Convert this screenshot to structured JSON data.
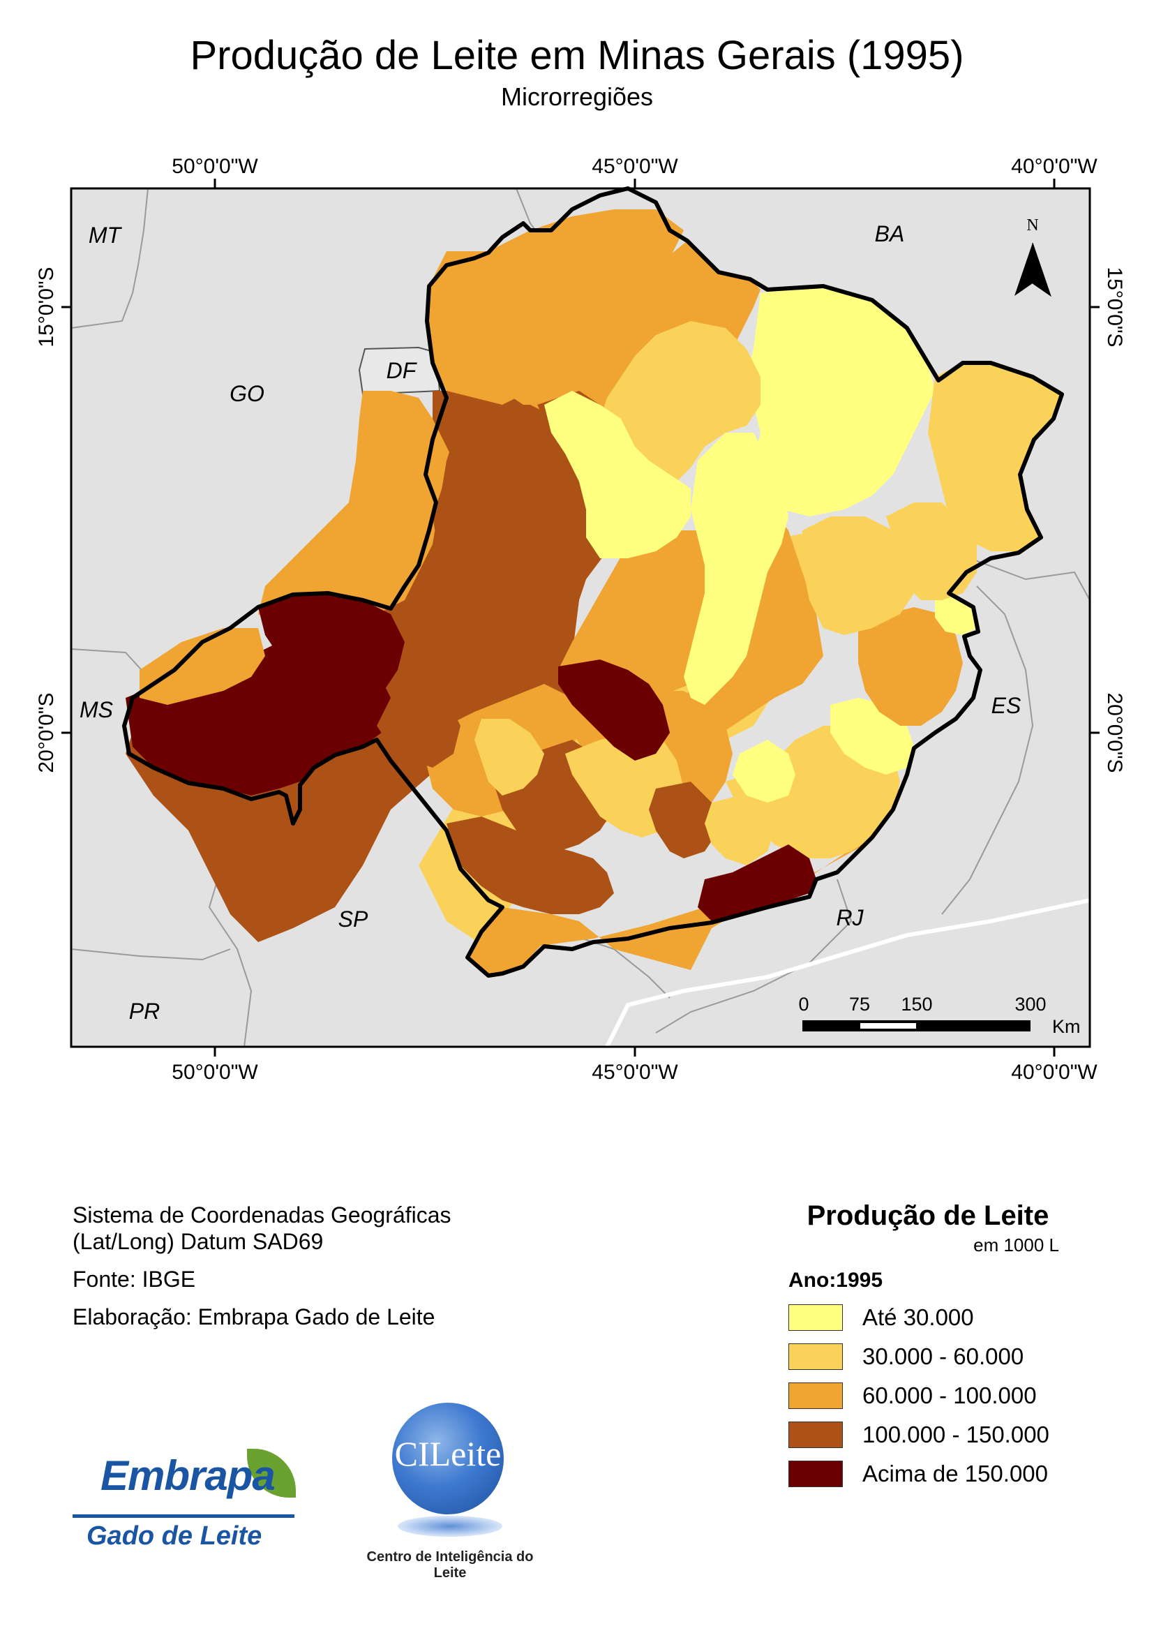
{
  "title": "Produção de Leite em Minas Gerais (1995)",
  "subtitle": "Microrregiões",
  "map": {
    "longitude_labels": [
      "50°0'0\"W",
      "45°0'0\"W",
      "40°0'0\"W"
    ],
    "latitude_labels": [
      "15°0'0\"S",
      "20°0'0\"S"
    ],
    "neighbor_labels": [
      "MT",
      "BA",
      "GO",
      "DF",
      "MS",
      "ES",
      "SP",
      "RJ",
      "PR"
    ],
    "north_label": "N",
    "scale_bar": {
      "ticks": [
        "0",
        "75",
        "150",
        "300"
      ],
      "unit": "Km"
    }
  },
  "footer": {
    "coord_line1": "Sistema de Coordenadas Geográficas",
    "coord_line2": "(Lat/Long) Datum SAD69",
    "source": "Fonte: IBGE",
    "credits": "Elaboração: Embrapa Gado de Leite"
  },
  "legend": {
    "title": "Produção de Leite",
    "unit": "em 1000 L",
    "year": "Ano:1995",
    "classes": [
      {
        "label": "Até 30.000",
        "color": "#ffff80"
      },
      {
        "label": "30.000 - 60.000",
        "color": "#fad25a"
      },
      {
        "label": "60.000 - 100.000",
        "color": "#f0a431"
      },
      {
        "label": "100.000 - 150.000",
        "color": "#ad5216"
      },
      {
        "label": "Acima de 150.000",
        "color": "#6b0000"
      }
    ]
  },
  "logos": {
    "embrapa_word": "Embrapa",
    "embrapa_sub": "Gado de Leite",
    "cileite_word": "CILeite",
    "cileite_sub": "Centro de Inteligência do Leite"
  }
}
